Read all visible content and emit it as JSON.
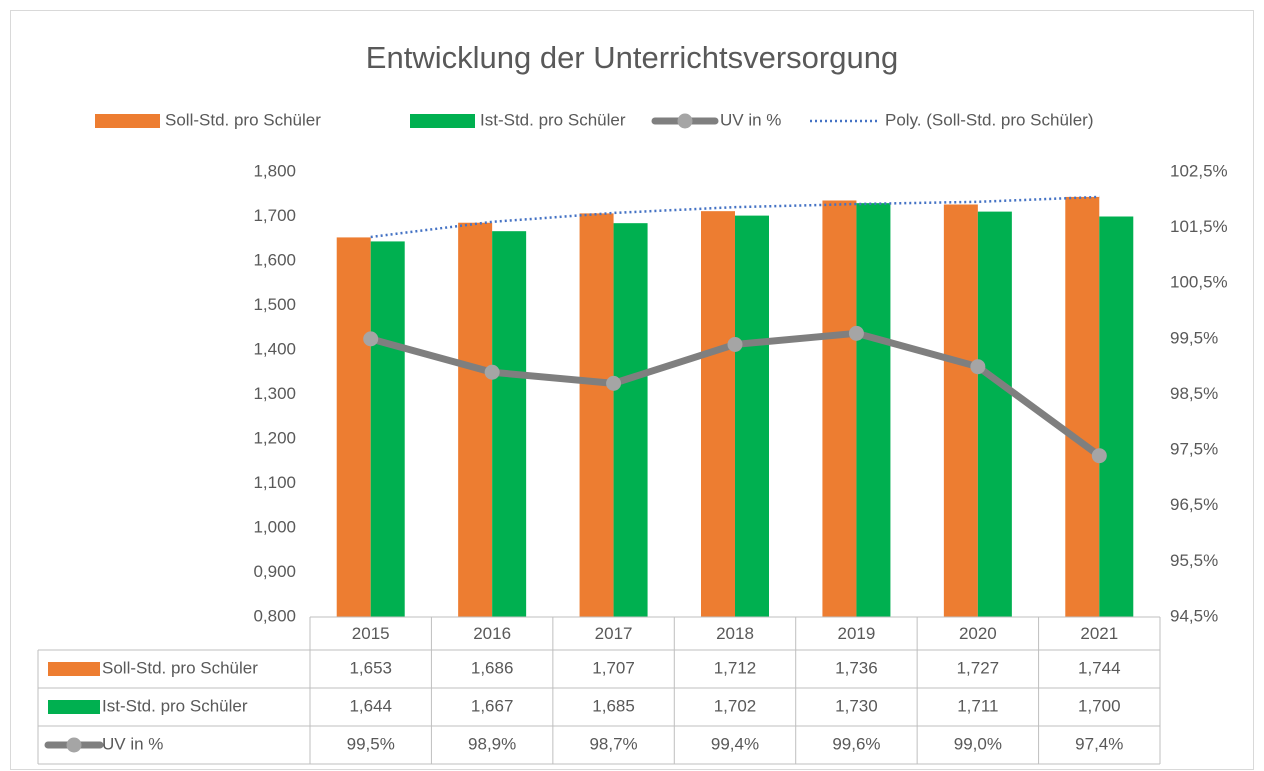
{
  "chart_data": {
    "type": "bar",
    "title": "Entwicklung der Unterrichtsversorgung",
    "categories": [
      "2015",
      "2016",
      "2017",
      "2018",
      "2019",
      "2020",
      "2021"
    ],
    "series": [
      {
        "name": "Soll-Std. pro Schüler",
        "color": "#ed7d31",
        "values": [
          1.653,
          1.686,
          1.707,
          1.712,
          1.736,
          1.727,
          1.744
        ],
        "value_labels": [
          "1,653",
          "1,686",
          "1,707",
          "1,712",
          "1,736",
          "1,727",
          "1,744"
        ]
      },
      {
        "name": "Ist-Std. pro Schüler",
        "color": "#00b050",
        "values": [
          1.644,
          1.667,
          1.685,
          1.702,
          1.73,
          1.711,
          1.7
        ],
        "value_labels": [
          "1,644",
          "1,667",
          "1,685",
          "1,702",
          "1,730",
          "1,711",
          "1,700"
        ]
      },
      {
        "name": "UV in %",
        "color": "#7f7f7f",
        "type": "line",
        "axis": "y2",
        "values": [
          99.5,
          98.9,
          98.7,
          99.4,
          99.6,
          99.0,
          97.4
        ],
        "value_labels": [
          "99,5%",
          "98,9%",
          "98,7%",
          "99,4%",
          "99,6%",
          "99,0%",
          "97,4%"
        ]
      },
      {
        "name": "Poly. (Soll-Std. pro Schüler)",
        "color": "#4472c4",
        "type": "trendline",
        "values": [
          1.654,
          1.688,
          1.708,
          1.721,
          1.728,
          1.733,
          1.744
        ]
      }
    ],
    "ylim": [
      0.8,
      1.8
    ],
    "yticks": [
      {
        "value": 0.8,
        "label": "0,800"
      },
      {
        "value": 0.9,
        "label": "0,900"
      },
      {
        "value": 1.0,
        "label": "1,000"
      },
      {
        "value": 1.1,
        "label": "1,100"
      },
      {
        "value": 1.2,
        "label": "1,200"
      },
      {
        "value": 1.3,
        "label": "1,300"
      },
      {
        "value": 1.4,
        "label": "1,400"
      },
      {
        "value": 1.5,
        "label": "1,500"
      },
      {
        "value": 1.6,
        "label": "1,600"
      },
      {
        "value": 1.7,
        "label": "1,700"
      },
      {
        "value": 1.8,
        "label": "1,800"
      }
    ],
    "y2lim": [
      94.5,
      102.5
    ],
    "y2ticks": [
      {
        "value": 94.5,
        "label": "94,5%"
      },
      {
        "value": 95.5,
        "label": "95,5%"
      },
      {
        "value": 96.5,
        "label": "96,5%"
      },
      {
        "value": 97.5,
        "label": "97,5%"
      },
      {
        "value": 98.5,
        "label": "98,5%"
      },
      {
        "value": 99.5,
        "label": "99,5%"
      },
      {
        "value": 100.5,
        "label": "100,5%"
      },
      {
        "value": 101.5,
        "label": "101,5%"
      },
      {
        "value": 102.5,
        "label": "102,5%"
      }
    ],
    "legend": "top",
    "data_table": true
  }
}
